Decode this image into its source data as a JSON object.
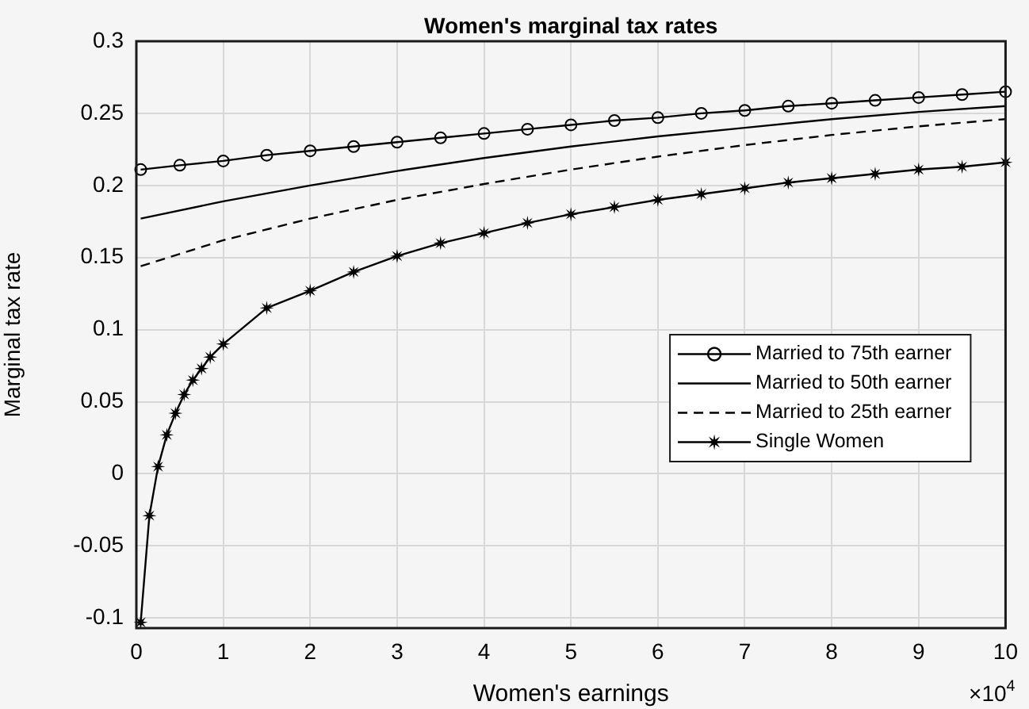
{
  "chart_data": {
    "type": "line",
    "title": "Women's marginal tax rates",
    "xlabel": "Women's earnings",
    "ylabel": "Marginal tax rate",
    "annotations": [
      "×10$^{4}$"
    ],
    "xlim": [
      0,
      10
    ],
    "xticks": [
      0,
      1,
      2,
      3,
      4,
      5,
      6,
      7,
      8,
      9,
      10
    ],
    "ylim": [
      -0.107,
      0.3
    ],
    "yticks": [
      -0.1,
      -0.05,
      0,
      0.05,
      0.1,
      0.15,
      0.2,
      0.25,
      0.3
    ],
    "grid": true,
    "legend": "right",
    "series": [
      {
        "name": "Married to 75th earner",
        "color": "#000000",
        "marker": "circle",
        "line_style": "solid",
        "x": [
          0.05,
          0.5,
          1,
          1.5,
          2,
          2.5,
          3,
          3.5,
          4,
          4.5,
          5,
          5.5,
          6,
          6.5,
          7,
          7.5,
          8,
          8.5,
          9,
          9.5,
          10
        ],
        "values": [
          0.211,
          0.214,
          0.217,
          0.221,
          0.224,
          0.227,
          0.23,
          0.233,
          0.236,
          0.239,
          0.242,
          0.245,
          0.247,
          0.25,
          0.252,
          0.255,
          0.257,
          0.259,
          0.261,
          0.263,
          0.265
        ]
      },
      {
        "name": "Married to 50th earner",
        "color": "#000000",
        "marker": "none",
        "line_style": "solid",
        "x": [
          0.05,
          1,
          2,
          3,
          4,
          5,
          6,
          7,
          8,
          9,
          10
        ],
        "values": [
          0.177,
          0.189,
          0.2,
          0.21,
          0.219,
          0.227,
          0.234,
          0.24,
          0.246,
          0.251,
          0.255
        ]
      },
      {
        "name": "Married to 25th earner",
        "color": "#000000",
        "marker": "none",
        "line_style": "dashed",
        "x": [
          0.05,
          1,
          2,
          3,
          4,
          5,
          6,
          7,
          8,
          9,
          10
        ],
        "values": [
          0.144,
          0.162,
          0.177,
          0.19,
          0.201,
          0.211,
          0.22,
          0.228,
          0.235,
          0.241,
          0.246
        ]
      },
      {
        "name": "Single Women",
        "color": "#000000",
        "marker": "star",
        "line_style": "solid",
        "x": [
          0.05,
          0.15,
          0.25,
          0.35,
          0.45,
          0.55,
          0.65,
          0.75,
          0.85,
          1,
          1.5,
          2,
          2.5,
          3,
          3.5,
          4,
          4.5,
          5,
          5.5,
          6,
          6.5,
          7,
          7.5,
          8,
          8.5,
          9,
          9.5,
          10
        ],
        "values": [
          -0.103,
          -0.029,
          0.005,
          0.027,
          0.042,
          0.055,
          0.065,
          0.073,
          0.081,
          0.09,
          0.115,
          0.127,
          0.14,
          0.151,
          0.16,
          0.167,
          0.174,
          0.18,
          0.185,
          0.19,
          0.194,
          0.198,
          0.202,
          0.205,
          0.208,
          0.211,
          0.213,
          0.216
        ]
      }
    ]
  }
}
